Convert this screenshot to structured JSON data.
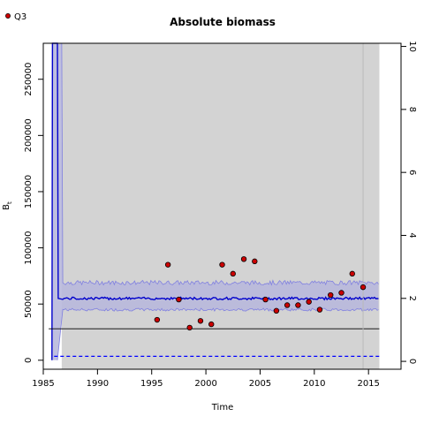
{
  "chart_data": {
    "type": "line",
    "title": "Absolute biomass",
    "xlabel": "Time",
    "ylabel": "B",
    "ylabel_sub": "t",
    "xlim": [
      1985.0,
      2018.0
    ],
    "ylim": [
      -8000,
      282000
    ],
    "y2lim": [
      -0.25,
      10.1
    ],
    "x_ticks": [
      1985,
      1990,
      1995,
      2000,
      2005,
      2010,
      2015
    ],
    "y_ticks": [
      0,
      50000,
      100000,
      150000,
      200000,
      250000
    ],
    "y2_ticks": [
      0,
      2,
      4,
      6,
      8,
      10
    ],
    "shaded_region": {
      "x_start": 1986.7,
      "x_end": 2016.0,
      "color": "#d3d3d3"
    },
    "vline": 2014.5,
    "hline": 28000,
    "median_level": 55000,
    "upper_band_level": 69000,
    "lower_band_level": 45000,
    "spike": {
      "x_start": 1985.8,
      "x_drop": 1986.3,
      "x_flat": 1986.6
    },
    "dashed_level": 3500,
    "dashed_x_end": 2016.0,
    "dashed_color": "#0000ff",
    "median_color": "#0000cc",
    "band_color": "#b8b8dc",
    "series": [
      {
        "name": "Q3",
        "style": "points",
        "color": "#cc0000",
        "x": [
          1995.5,
          1996.5,
          1997.5,
          1998.5,
          1999.5,
          2000.5,
          2001.5,
          2002.5,
          2003.5,
          2004.5,
          2005.5,
          2006.5,
          2007.5,
          2008.5,
          2009.5,
          2010.5,
          2011.5,
          2012.5,
          2013.5,
          2014.5
        ],
        "y": [
          36000,
          85000,
          54000,
          29000,
          35000,
          32000,
          85000,
          77000,
          90000,
          88000,
          54000,
          44000,
          49000,
          49000,
          52000,
          45000,
          58000,
          60000,
          77000,
          65000
        ]
      }
    ],
    "legend": {
      "placement": "top-left"
    }
  }
}
